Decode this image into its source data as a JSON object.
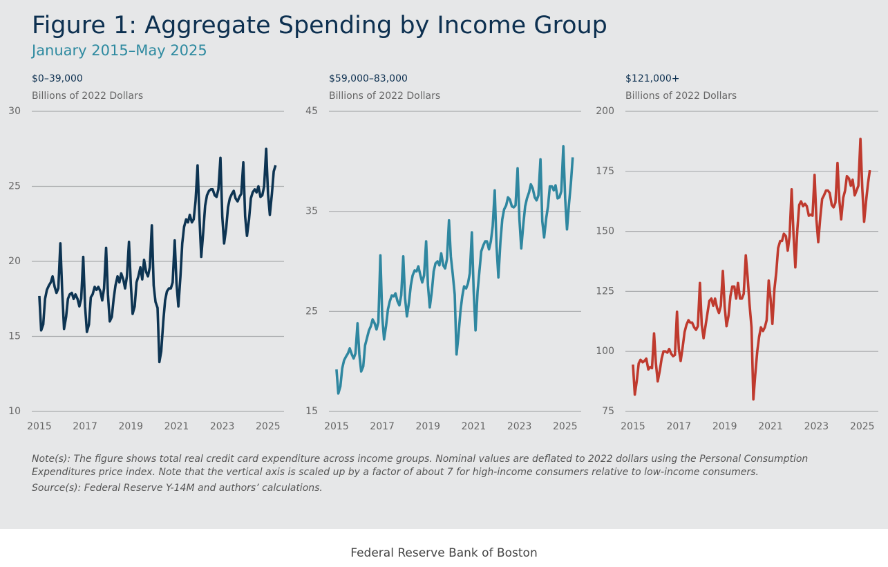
{
  "title": "Figure 1: Aggregate Spending by Income Group",
  "subtitle": "January 2015–May 2025",
  "chart_data": [
    {
      "type": "line",
      "title": "$0–39,000",
      "y_label": "Billions of 2022 Dollars",
      "color": "#0d3452",
      "x": [
        2015,
        2015.08,
        2015.17,
        2015.25,
        2015.33,
        2015.42,
        2015.5,
        2015.58,
        2015.67,
        2015.75,
        2015.83,
        2015.92,
        2016,
        2016.08,
        2016.17,
        2016.25,
        2016.33,
        2016.42,
        2016.5,
        2016.58,
        2016.67,
        2016.75,
        2016.83,
        2016.92,
        2017,
        2017.08,
        2017.17,
        2017.25,
        2017.33,
        2017.42,
        2017.5,
        2017.58,
        2017.67,
        2017.75,
        2017.83,
        2017.92,
        2018,
        2018.08,
        2018.17,
        2018.25,
        2018.33,
        2018.42,
        2018.5,
        2018.58,
        2018.67,
        2018.75,
        2018.83,
        2018.92,
        2019,
        2019.08,
        2019.17,
        2019.25,
        2019.33,
        2019.42,
        2019.5,
        2019.58,
        2019.67,
        2019.75,
        2019.83,
        2019.92,
        2020,
        2020.08,
        2020.17,
        2020.25,
        2020.33,
        2020.42,
        2020.5,
        2020.58,
        2020.67,
        2020.75,
        2020.83,
        2020.92,
        2021,
        2021.08,
        2021.17,
        2021.25,
        2021.33,
        2021.42,
        2021.5,
        2021.58,
        2021.67,
        2021.75,
        2021.83,
        2021.92,
        2022,
        2022.08,
        2022.17,
        2022.25,
        2022.33,
        2022.42,
        2022.5,
        2022.58,
        2022.67,
        2022.75,
        2022.83,
        2022.92,
        2023,
        2023.08,
        2023.17,
        2023.25,
        2023.33,
        2023.42,
        2023.5,
        2023.58,
        2023.67,
        2023.75,
        2023.83,
        2023.92,
        2024,
        2024.08,
        2024.17,
        2024.25,
        2024.33,
        2024.42,
        2024.5,
        2024.58,
        2024.67,
        2024.75,
        2024.83,
        2024.92,
        2025,
        2025.08,
        2025.17,
        2025.25,
        2025.33
      ],
      "values": [
        17.7,
        15.4,
        15.8,
        17.5,
        18.1,
        18.4,
        18.6,
        19.0,
        18.3,
        17.9,
        18.2,
        21.2,
        18.0,
        15.5,
        16.3,
        17.5,
        17.8,
        17.9,
        17.5,
        17.8,
        17.5,
        17.0,
        17.5,
        20.3,
        17.0,
        15.3,
        15.8,
        17.6,
        17.8,
        18.3,
        18.1,
        18.3,
        18.0,
        17.4,
        18.2,
        20.9,
        17.8,
        16.0,
        16.3,
        17.5,
        18.4,
        19.0,
        18.6,
        19.2,
        18.8,
        18.2,
        19.0,
        21.3,
        18.5,
        16.5,
        17.0,
        18.6,
        19.0,
        19.6,
        18.8,
        20.1,
        19.3,
        19.0,
        19.6,
        22.4,
        18.4,
        17.3,
        16.9,
        13.3,
        14.0,
        16.0,
        17.4,
        18.0,
        18.2,
        18.2,
        18.6,
        21.4,
        18.5,
        17.0,
        19.0,
        21.2,
        22.3,
        22.8,
        22.6,
        23.1,
        22.6,
        22.8,
        24.0,
        26.4,
        23.0,
        20.3,
        22.0,
        23.7,
        24.4,
        24.7,
        24.8,
        24.8,
        24.4,
        24.3,
        24.8,
        26.9,
        23.0,
        21.2,
        22.2,
        23.6,
        24.2,
        24.5,
        24.7,
        24.2,
        24.0,
        24.3,
        24.5,
        26.6,
        23.0,
        21.7,
        22.8,
        24.2,
        24.6,
        24.8,
        24.6,
        25.0,
        24.3,
        24.4,
        25.0,
        27.5,
        24.5,
        23.1,
        24.5,
        26.0,
        26.4
      ],
      "xlim": [
        2014.67,
        2025.7
      ],
      "xticks": [
        2015,
        2017,
        2019,
        2021,
        2023,
        2025
      ],
      "ylim": [
        10,
        30
      ],
      "yticks": [
        10,
        15,
        20,
        25,
        30
      ],
      "grid": true
    },
    {
      "type": "line",
      "title": "$59,000–83,000",
      "y_label": "Billions of 2022 Dollars",
      "color": "#2f87a0",
      "x": [
        2015,
        2015.08,
        2015.17,
        2015.25,
        2015.33,
        2015.42,
        2015.5,
        2015.58,
        2015.67,
        2015.75,
        2015.83,
        2015.92,
        2016,
        2016.08,
        2016.17,
        2016.25,
        2016.33,
        2016.42,
        2016.5,
        2016.58,
        2016.67,
        2016.75,
        2016.83,
        2016.92,
        2017,
        2017.08,
        2017.17,
        2017.25,
        2017.33,
        2017.42,
        2017.5,
        2017.58,
        2017.67,
        2017.75,
        2017.83,
        2017.92,
        2018,
        2018.08,
        2018.17,
        2018.25,
        2018.33,
        2018.42,
        2018.5,
        2018.58,
        2018.67,
        2018.75,
        2018.83,
        2018.92,
        2019,
        2019.08,
        2019.17,
        2019.25,
        2019.33,
        2019.42,
        2019.5,
        2019.58,
        2019.67,
        2019.75,
        2019.83,
        2019.92,
        2020,
        2020.08,
        2020.17,
        2020.25,
        2020.33,
        2020.42,
        2020.5,
        2020.58,
        2020.67,
        2020.75,
        2020.83,
        2020.92,
        2021,
        2021.08,
        2021.17,
        2021.25,
        2021.33,
        2021.42,
        2021.5,
        2021.58,
        2021.67,
        2021.75,
        2021.83,
        2021.92,
        2022,
        2022.08,
        2022.17,
        2022.25,
        2022.33,
        2022.42,
        2022.5,
        2022.58,
        2022.67,
        2022.75,
        2022.83,
        2022.92,
        2023,
        2023.08,
        2023.17,
        2023.25,
        2023.33,
        2023.42,
        2023.5,
        2023.58,
        2023.67,
        2023.75,
        2023.83,
        2023.92,
        2024,
        2024.08,
        2024.17,
        2024.25,
        2024.33,
        2024.42,
        2024.5,
        2024.58,
        2024.67,
        2024.75,
        2024.83,
        2024.92,
        2025,
        2025.08,
        2025.17,
        2025.25,
        2025.33
      ],
      "values": [
        19.2,
        16.8,
        17.5,
        19.3,
        20.1,
        20.5,
        20.8,
        21.3,
        20.7,
        20.3,
        20.8,
        23.8,
        20.7,
        19.0,
        19.5,
        21.6,
        22.3,
        23.1,
        23.5,
        24.2,
        23.8,
        23.2,
        23.9,
        30.6,
        24.5,
        22.2,
        23.6,
        25.2,
        26.0,
        26.6,
        26.5,
        26.8,
        26.0,
        25.6,
        26.6,
        30.5,
        26.3,
        24.5,
        25.9,
        27.6,
        28.6,
        29.1,
        29.0,
        29.5,
        28.6,
        27.9,
        28.6,
        32.0,
        27.6,
        25.4,
        27.0,
        29.0,
        29.8,
        30.0,
        29.6,
        30.8,
        29.6,
        29.3,
        30.2,
        34.1,
        30.5,
        28.8,
        26.7,
        20.7,
        22.5,
        25.0,
        26.5,
        27.5,
        27.3,
        27.8,
        28.8,
        32.9,
        27.0,
        23.1,
        27.0,
        29.0,
        31.0,
        31.6,
        32.0,
        32.0,
        31.2,
        32.0,
        33.5,
        37.1,
        31.5,
        28.4,
        32.0,
        34.2,
        35.2,
        35.6,
        36.4,
        36.2,
        35.5,
        35.4,
        35.6,
        39.3,
        34.2,
        31.3,
        33.7,
        35.5,
        36.3,
        36.9,
        37.7,
        37.3,
        36.4,
        36.1,
        36.6,
        40.2,
        34.0,
        32.4,
        34.3,
        35.5,
        37.5,
        37.5,
        37.1,
        37.6,
        36.3,
        36.4,
        37.0,
        41.5,
        36.3,
        33.2,
        35.8,
        37.8,
        40.4
      ],
      "xlim": [
        2014.67,
        2025.7
      ],
      "xticks": [
        2015,
        2017,
        2019,
        2021,
        2023,
        2025
      ],
      "ylim": [
        15,
        45
      ],
      "yticks": [
        15,
        25,
        35,
        45
      ],
      "grid": true
    },
    {
      "type": "line",
      "title": "$121,000+",
      "y_label": "Billions of 2022 Dollars",
      "color": "#bf3a2e",
      "x": [
        2015,
        2015.08,
        2015.17,
        2015.25,
        2015.33,
        2015.42,
        2015.5,
        2015.58,
        2015.67,
        2015.75,
        2015.83,
        2015.92,
        2016,
        2016.08,
        2016.17,
        2016.25,
        2016.33,
        2016.42,
        2016.5,
        2016.58,
        2016.67,
        2016.75,
        2016.83,
        2016.92,
        2017,
        2017.08,
        2017.17,
        2017.25,
        2017.33,
        2017.42,
        2017.5,
        2017.58,
        2017.67,
        2017.75,
        2017.83,
        2017.92,
        2018,
        2018.08,
        2018.17,
        2018.25,
        2018.33,
        2018.42,
        2018.5,
        2018.58,
        2018.67,
        2018.75,
        2018.83,
        2018.92,
        2019,
        2019.08,
        2019.17,
        2019.25,
        2019.33,
        2019.42,
        2019.5,
        2019.58,
        2019.67,
        2019.75,
        2019.83,
        2019.92,
        2020,
        2020.08,
        2020.17,
        2020.25,
        2020.33,
        2020.42,
        2020.5,
        2020.58,
        2020.67,
        2020.75,
        2020.83,
        2020.92,
        2021,
        2021.08,
        2021.17,
        2021.25,
        2021.33,
        2021.42,
        2021.5,
        2021.58,
        2021.67,
        2021.75,
        2021.83,
        2021.92,
        2022,
        2022.08,
        2022.17,
        2022.25,
        2022.33,
        2022.42,
        2022.5,
        2022.58,
        2022.67,
        2022.75,
        2022.83,
        2022.92,
        2023,
        2023.08,
        2023.17,
        2023.25,
        2023.33,
        2023.42,
        2023.5,
        2023.58,
        2023.67,
        2023.75,
        2023.83,
        2023.92,
        2024,
        2024.08,
        2024.17,
        2024.25,
        2024.33,
        2024.42,
        2024.5,
        2024.58,
        2024.67,
        2024.75,
        2024.83,
        2024.92,
        2025,
        2025.08,
        2025.17,
        2025.25,
        2025.33
      ],
      "values": [
        94.5,
        82.0,
        88.0,
        95.0,
        96.5,
        95.5,
        96.0,
        97.0,
        92.5,
        93.5,
        93.0,
        107.5,
        95.0,
        87.5,
        92.0,
        97.0,
        100.0,
        100.0,
        99.5,
        101.0,
        99.0,
        98.0,
        98.5,
        116.5,
        101.0,
        96.0,
        102.0,
        108.0,
        111.0,
        113.0,
        112.0,
        112.0,
        110.0,
        109.0,
        110.5,
        128.5,
        111.0,
        105.5,
        111.0,
        116.0,
        121.0,
        122.0,
        119.0,
        122.0,
        118.0,
        116.0,
        119.0,
        133.5,
        118.5,
        110.5,
        115.0,
        123.0,
        127.0,
        127.0,
        122.0,
        128.5,
        122.0,
        122.0,
        124.0,
        140.0,
        131.0,
        120.0,
        110.0,
        80.0,
        90.0,
        100.0,
        106.0,
        110.0,
        108.5,
        110.0,
        113.0,
        129.5,
        122.0,
        111.5,
        126.0,
        133.0,
        143.0,
        146.0,
        146.0,
        149.0,
        148.0,
        142.0,
        148.0,
        167.5,
        149.0,
        135.0,
        151.0,
        161.0,
        162.5,
        160.5,
        161.5,
        160.5,
        156.5,
        157.0,
        156.5,
        173.5,
        155.0,
        145.5,
        156.0,
        163.5,
        165.0,
        167.0,
        167.0,
        166.0,
        161.0,
        160.0,
        162.0,
        178.5,
        163.0,
        155.0,
        164.0,
        167.0,
        173.0,
        172.0,
        169.0,
        171.5,
        165.0,
        167.0,
        169.0,
        188.5,
        168.0,
        154.0,
        163.0,
        170.0,
        175.5
      ],
      "xlim": [
        2014.67,
        2025.7
      ],
      "xticks": [
        2015,
        2017,
        2019,
        2021,
        2023,
        2025
      ],
      "ylim": [
        75,
        200
      ],
      "yticks": [
        75,
        100,
        125,
        150,
        175,
        200
      ],
      "grid": true
    }
  ],
  "note": "Note(s): The figure shows total real credit card expenditure across income groups. Nominal values are deflated to 2022 dollars using the Personal Consumption Expenditures price index. Note that the vertical axis is scaled up by a factor of about 7 for high-income consumers relative to low-income consumers.",
  "source": "Source(s): Federal Reserve Y-14M and authors’ calculations.",
  "footer": "Federal Reserve Bank of Boston"
}
